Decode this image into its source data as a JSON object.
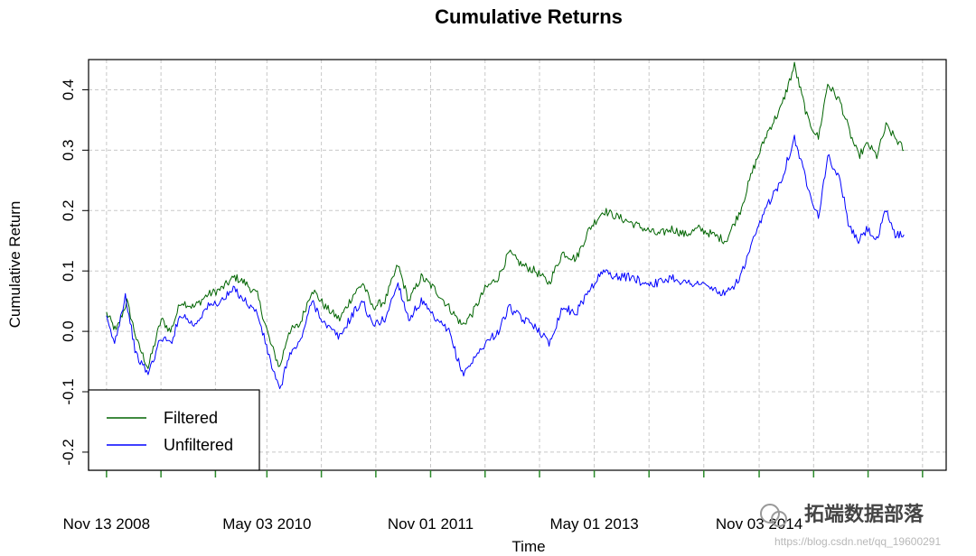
{
  "chart_data": {
    "type": "line",
    "title": "Cumulative Returns",
    "xlabel": "Time",
    "ylabel": "Cumulative Return",
    "ylim": [
      -0.23,
      0.45
    ],
    "yticks": [
      -0.2,
      -0.1,
      0.0,
      0.1,
      0.2,
      0.3,
      0.4
    ],
    "ytick_labels": [
      "-0.2",
      "-0.1",
      "0.0",
      "0.1",
      "0.2",
      "0.3",
      "0.4"
    ],
    "xlim": [
      "2008-09-14",
      "2016-07-20"
    ],
    "xticks": [
      "2008-11-13",
      "2009-05-14",
      "2009-11-12",
      "2010-05-03",
      "2010-11-01",
      "2011-05-02",
      "2011-11-01",
      "2012-05-01",
      "2012-10-30",
      "2013-05-01",
      "2013-10-31",
      "2014-05-02",
      "2014-11-03",
      "2015-05-04",
      "2015-11-02",
      "2016-05-02"
    ],
    "xtick_labels": [
      "Nov 13 2008",
      "May 03 2010",
      "Nov 01 2011",
      "May 01 2013",
      "Nov 03 2014"
    ],
    "xtick_label_dates": [
      "2008-11-13",
      "2010-05-03",
      "2011-11-01",
      "2013-05-01",
      "2014-11-03"
    ],
    "grid": true,
    "legend_position": "bottom-left",
    "series": [
      {
        "name": "Filtered",
        "color": "#006400",
        "points": [
          [
            "2008-11-13",
            0.03
          ],
          [
            "2008-12-15",
            0.0
          ],
          [
            "2009-01-20",
            0.05
          ],
          [
            "2009-02-25",
            -0.02
          ],
          [
            "2009-04-01",
            -0.06
          ],
          [
            "2009-05-15",
            0.02
          ],
          [
            "2009-06-15",
            0.0
          ],
          [
            "2009-07-20",
            0.05
          ],
          [
            "2009-09-01",
            0.04
          ],
          [
            "2009-10-15",
            0.06
          ],
          [
            "2009-12-01",
            0.07
          ],
          [
            "2010-01-15",
            0.09
          ],
          [
            "2010-02-20",
            0.08
          ],
          [
            "2010-04-01",
            0.06
          ],
          [
            "2010-05-15",
            -0.02
          ],
          [
            "2010-06-15",
            -0.06
          ],
          [
            "2010-07-15",
            0.0
          ],
          [
            "2010-08-20",
            0.01
          ],
          [
            "2010-10-01",
            0.07
          ],
          [
            "2010-11-15",
            0.04
          ],
          [
            "2011-01-01",
            0.02
          ],
          [
            "2011-02-15",
            0.06
          ],
          [
            "2011-03-20",
            0.08
          ],
          [
            "2011-04-20",
            0.04
          ],
          [
            "2011-06-01",
            0.05
          ],
          [
            "2011-07-15",
            0.11
          ],
          [
            "2011-08-20",
            0.05
          ],
          [
            "2011-10-01",
            0.09
          ],
          [
            "2011-11-15",
            0.07
          ],
          [
            "2012-01-01",
            0.04
          ],
          [
            "2012-02-15",
            0.01
          ],
          [
            "2012-03-20",
            0.03
          ],
          [
            "2012-05-01",
            0.07
          ],
          [
            "2012-06-15",
            0.09
          ],
          [
            "2012-07-20",
            0.13
          ],
          [
            "2012-09-01",
            0.11
          ],
          [
            "2012-10-15",
            0.1
          ],
          [
            "2012-12-01",
            0.08
          ],
          [
            "2013-01-15",
            0.13
          ],
          [
            "2013-03-01",
            0.12
          ],
          [
            "2013-04-15",
            0.17
          ],
          [
            "2013-06-01",
            0.2
          ],
          [
            "2013-07-15",
            0.19
          ],
          [
            "2013-09-01",
            0.18
          ],
          [
            "2013-10-15",
            0.17
          ],
          [
            "2013-12-01",
            0.16
          ],
          [
            "2014-01-15",
            0.17
          ],
          [
            "2014-03-01",
            0.16
          ],
          [
            "2014-04-15",
            0.17
          ],
          [
            "2014-06-01",
            0.16
          ],
          [
            "2014-07-15",
            0.15
          ],
          [
            "2014-09-01",
            0.2
          ],
          [
            "2014-10-15",
            0.27
          ],
          [
            "2014-12-01",
            0.33
          ],
          [
            "2015-01-15",
            0.37
          ],
          [
            "2015-03-01",
            0.44
          ],
          [
            "2015-04-15",
            0.35
          ],
          [
            "2015-05-20",
            0.32
          ],
          [
            "2015-06-20",
            0.41
          ],
          [
            "2015-08-01",
            0.38
          ],
          [
            "2015-09-01",
            0.33
          ],
          [
            "2015-10-01",
            0.29
          ],
          [
            "2015-11-01",
            0.31
          ],
          [
            "2015-12-01",
            0.29
          ],
          [
            "2016-01-01",
            0.34
          ],
          [
            "2016-02-01",
            0.32
          ],
          [
            "2016-03-01",
            0.3
          ]
        ]
      },
      {
        "name": "Unfiltered",
        "color": "#0000ff",
        "points": [
          [
            "2008-11-13",
            0.02
          ],
          [
            "2008-12-10",
            -0.02
          ],
          [
            "2009-01-15",
            0.06
          ],
          [
            "2009-02-20",
            -0.04
          ],
          [
            "2009-04-01",
            -0.07
          ],
          [
            "2009-05-15",
            -0.01
          ],
          [
            "2009-06-15",
            -0.02
          ],
          [
            "2009-07-20",
            0.03
          ],
          [
            "2009-09-01",
            0.01
          ],
          [
            "2009-10-15",
            0.04
          ],
          [
            "2009-12-01",
            0.05
          ],
          [
            "2010-01-15",
            0.07
          ],
          [
            "2010-02-20",
            0.05
          ],
          [
            "2010-04-01",
            0.03
          ],
          [
            "2010-05-15",
            -0.05
          ],
          [
            "2010-06-15",
            -0.1
          ],
          [
            "2010-07-15",
            -0.04
          ],
          [
            "2010-08-20",
            -0.02
          ],
          [
            "2010-10-01",
            0.05
          ],
          [
            "2010-11-15",
            0.01
          ],
          [
            "2011-01-01",
            -0.01
          ],
          [
            "2011-02-15",
            0.03
          ],
          [
            "2011-03-20",
            0.05
          ],
          [
            "2011-04-20",
            0.01
          ],
          [
            "2011-06-01",
            0.02
          ],
          [
            "2011-07-15",
            0.08
          ],
          [
            "2011-08-20",
            0.02
          ],
          [
            "2011-10-01",
            0.05
          ],
          [
            "2011-11-15",
            0.02
          ],
          [
            "2012-01-01",
            0.0
          ],
          [
            "2012-02-15",
            -0.07
          ],
          [
            "2012-03-20",
            -0.05
          ],
          [
            "2012-05-01",
            -0.02
          ],
          [
            "2012-06-15",
            0.0
          ],
          [
            "2012-07-20",
            0.04
          ],
          [
            "2012-09-01",
            0.02
          ],
          [
            "2012-10-15",
            0.01
          ],
          [
            "2012-12-01",
            -0.02
          ],
          [
            "2013-01-15",
            0.04
          ],
          [
            "2013-03-01",
            0.03
          ],
          [
            "2013-04-15",
            0.07
          ],
          [
            "2013-06-01",
            0.1
          ],
          [
            "2013-07-15",
            0.09
          ],
          [
            "2013-09-01",
            0.09
          ],
          [
            "2013-10-15",
            0.08
          ],
          [
            "2013-12-01",
            0.08
          ],
          [
            "2014-01-15",
            0.09
          ],
          [
            "2014-03-01",
            0.08
          ],
          [
            "2014-04-15",
            0.08
          ],
          [
            "2014-06-01",
            0.07
          ],
          [
            "2014-07-15",
            0.06
          ],
          [
            "2014-09-01",
            0.09
          ],
          [
            "2014-10-15",
            0.15
          ],
          [
            "2014-12-01",
            0.21
          ],
          [
            "2015-01-15",
            0.25
          ],
          [
            "2015-03-01",
            0.32
          ],
          [
            "2015-04-15",
            0.24
          ],
          [
            "2015-05-20",
            0.19
          ],
          [
            "2015-06-20",
            0.29
          ],
          [
            "2015-08-01",
            0.25
          ],
          [
            "2015-09-01",
            0.17
          ],
          [
            "2015-10-01",
            0.15
          ],
          [
            "2015-11-01",
            0.17
          ],
          [
            "2015-12-01",
            0.15
          ],
          [
            "2016-01-01",
            0.2
          ],
          [
            "2016-02-01",
            0.16
          ],
          [
            "2016-03-01",
            0.16
          ]
        ]
      }
    ]
  },
  "overlay": {
    "brand_text": "拓端数据部落",
    "url_text": "https://blog.csdn.net/qq_19600291"
  }
}
